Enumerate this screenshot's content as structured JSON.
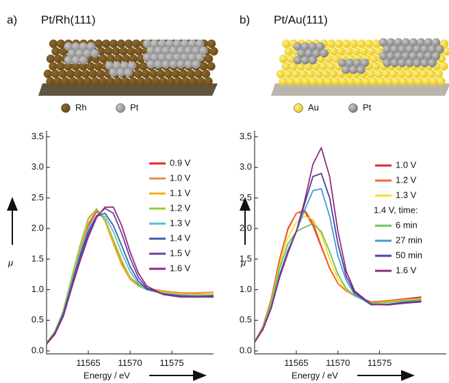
{
  "chart_data": [
    {
      "type": "line",
      "panel": "a)",
      "title": "Pt/Rh(111)",
      "model_legend": [
        "Rh",
        "Pt"
      ],
      "xlabel": "Energy / eV",
      "ylabel": "μ",
      "xlim": [
        11560,
        11580
      ],
      "xticks": [
        11565,
        11570,
        11575
      ],
      "ylim": [
        -0.05,
        3.6
      ],
      "yticks": [
        {
          "value": 0,
          "label": "0.0"
        },
        0.5,
        {
          "value": 1,
          "label": "1.0"
        },
        1.5,
        {
          "value": 2,
          "label": "2.0"
        },
        2.5,
        {
          "value": 3,
          "label": "3.0"
        },
        3.5
      ],
      "x": [
        11560,
        11561,
        11562,
        11563,
        11564,
        11565,
        11566,
        11567,
        11568,
        11569,
        11570,
        11571,
        11572,
        11574,
        11576,
        11578,
        11580
      ],
      "series": [
        {
          "name": "0.9 V",
          "color": "#e3262b",
          "values": [
            0.12,
            0.3,
            0.6,
            1.1,
            1.6,
            2.05,
            2.28,
            2.15,
            1.8,
            1.45,
            1.2,
            1.08,
            1.02,
            0.98,
            0.95,
            0.94,
            0.95
          ]
        },
        {
          "name": "1.0 V",
          "color": "#f08a3a",
          "values": [
            0.12,
            0.3,
            0.62,
            1.12,
            1.62,
            2.08,
            2.3,
            2.14,
            1.78,
            1.43,
            1.19,
            1.07,
            1.02,
            0.98,
            0.95,
            0.95,
            0.96
          ]
        },
        {
          "name": "1.1 V",
          "color": "#f7ab1c",
          "values": [
            0.13,
            0.32,
            0.65,
            1.18,
            1.7,
            2.15,
            2.32,
            2.12,
            1.75,
            1.4,
            1.17,
            1.06,
            1.01,
            0.97,
            0.94,
            0.93,
            0.95
          ]
        },
        {
          "name": "1.2 V",
          "color": "#9cc93b",
          "values": [
            0.13,
            0.32,
            0.66,
            1.2,
            1.72,
            2.17,
            2.32,
            2.15,
            1.82,
            1.48,
            1.2,
            1.06,
            1.0,
            0.95,
            0.92,
            0.91,
            0.92
          ]
        },
        {
          "name": "1.3 V",
          "color": "#55c1c9",
          "values": [
            0.12,
            0.3,
            0.62,
            1.12,
            1.6,
            2.0,
            2.22,
            2.2,
            1.95,
            1.6,
            1.3,
            1.1,
            1.0,
            0.94,
            0.91,
            0.9,
            0.91
          ]
        },
        {
          "name": "1.4 V",
          "color": "#3a5aa8",
          "values": [
            0.12,
            0.29,
            0.6,
            1.08,
            1.55,
            1.95,
            2.2,
            2.25,
            2.05,
            1.72,
            1.38,
            1.14,
            1.01,
            0.93,
            0.9,
            0.89,
            0.9
          ]
        },
        {
          "name": "1.5 V",
          "color": "#6a3f9c",
          "values": [
            0.11,
            0.28,
            0.58,
            1.05,
            1.5,
            1.9,
            2.2,
            2.33,
            2.25,
            1.92,
            1.52,
            1.2,
            1.03,
            0.92,
            0.89,
            0.88,
            0.89
          ]
        },
        {
          "name": "1.6 V",
          "color": "#8e2a7f",
          "values": [
            0.11,
            0.27,
            0.56,
            1.02,
            1.46,
            1.86,
            2.18,
            2.35,
            2.35,
            2.05,
            1.62,
            1.27,
            1.06,
            0.92,
            0.88,
            0.88,
            0.88
          ]
        }
      ]
    },
    {
      "type": "line",
      "panel": "b)",
      "title": "Pt/Au(111)",
      "model_legend": [
        "Au",
        "Pt"
      ],
      "xlabel": "Energy / eV",
      "ylabel": "μ",
      "legend_heading": "1.4 V, time:",
      "xlim": [
        11560,
        11583
      ],
      "xticks": [
        11565,
        11570,
        11575
      ],
      "ylim": [
        -0.05,
        3.6
      ],
      "yticks": [
        {
          "value": 0,
          "label": "0.0"
        },
        0.5,
        {
          "value": 1,
          "label": "1.0"
        },
        1.5,
        {
          "value": 2,
          "label": "2.0"
        },
        2.5,
        {
          "value": 3,
          "label": "3.0"
        },
        3.5
      ],
      "x": [
        11560,
        11561,
        11562,
        11563,
        11564,
        11565,
        11566,
        11567,
        11568,
        11569,
        11570,
        11571,
        11572,
        11574,
        11576,
        11578,
        11580
      ],
      "series": [
        {
          "name": "1.0 V",
          "color": "#e3262b",
          "values": [
            0.15,
            0.4,
            0.85,
            1.5,
            2.0,
            2.25,
            2.28,
            2.05,
            1.7,
            1.35,
            1.1,
            0.98,
            0.9,
            0.8,
            0.82,
            0.85,
            0.88
          ]
        },
        {
          "name": "1.2 V",
          "color": "#f26a2a",
          "values": [
            0.15,
            0.4,
            0.84,
            1.48,
            1.98,
            2.25,
            2.3,
            2.1,
            1.72,
            1.36,
            1.1,
            0.98,
            0.9,
            0.8,
            0.82,
            0.84,
            0.86
          ]
        },
        {
          "name": "1.3 V",
          "color": "#f2e31c",
          "values": [
            0.15,
            0.38,
            0.8,
            1.4,
            1.85,
            2.1,
            2.2,
            2.15,
            1.9,
            1.5,
            1.18,
            1.0,
            0.9,
            0.78,
            0.8,
            0.83,
            0.85
          ]
        },
        {
          "name": "6 min",
          "color": "#6cbf5a",
          "values": [
            0.15,
            0.38,
            0.78,
            1.35,
            1.75,
            1.95,
            2.02,
            2.08,
            1.95,
            1.62,
            1.25,
            1.02,
            0.9,
            0.78,
            0.79,
            0.82,
            0.84
          ]
        },
        {
          "name": "27 min",
          "color": "#3f9ad6",
          "values": [
            0.14,
            0.36,
            0.72,
            1.25,
            1.65,
            1.95,
            2.3,
            2.62,
            2.65,
            2.2,
            1.55,
            1.15,
            0.92,
            0.75,
            0.76,
            0.8,
            0.82
          ]
        },
        {
          "name": "50 min",
          "color": "#4a3d9c",
          "values": [
            0.14,
            0.35,
            0.7,
            1.22,
            1.62,
            1.95,
            2.4,
            2.85,
            2.9,
            2.5,
            1.75,
            1.22,
            0.95,
            0.76,
            0.76,
            0.79,
            0.81
          ]
        },
        {
          "name": "1.6 V",
          "color": "#8e2a7f",
          "values": [
            0.14,
            0.35,
            0.7,
            1.2,
            1.6,
            1.95,
            2.45,
            3.05,
            3.32,
            2.85,
            1.95,
            1.3,
            0.98,
            0.76,
            0.75,
            0.78,
            0.8
          ]
        }
      ]
    }
  ]
}
